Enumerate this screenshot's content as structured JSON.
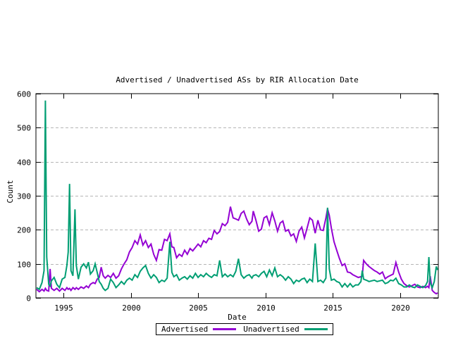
{
  "chart_data": {
    "type": "line",
    "title": "Advertised / Unadvertised ASs by RIR Allocation Date",
    "xlabel": "Date",
    "ylabel": "Count",
    "xlim": [
      1992.95,
      2022.85
    ],
    "ylim": [
      0,
      600
    ],
    "xticks": [
      1995,
      2000,
      2005,
      2010,
      2015,
      2020
    ],
    "yticks": [
      0,
      100,
      200,
      300,
      400,
      500,
      600
    ],
    "grid": "horizontal-dashed",
    "grid_color": "#b5b5b5",
    "legend_position": "bottom-center-boxed",
    "x": [
      1993.0,
      1993.2,
      1993.4,
      1993.55,
      1993.65,
      1993.75,
      1993.9,
      1994.0,
      1994.1,
      1994.3,
      1994.5,
      1994.7,
      1994.9,
      1995.1,
      1995.25,
      1995.35,
      1995.45,
      1995.55,
      1995.7,
      1995.85,
      1995.95,
      1996.1,
      1996.3,
      1996.5,
      1996.7,
      1996.85,
      1997.0,
      1997.2,
      1997.35,
      1997.5,
      1997.65,
      1997.8,
      1997.95,
      1998.1,
      1998.3,
      1998.5,
      1998.7,
      1998.9,
      1999.1,
      1999.3,
      1999.5,
      1999.7,
      1999.9,
      2000.1,
      2000.3,
      2000.5,
      2000.7,
      2000.9,
      2001.1,
      2001.3,
      2001.5,
      2001.7,
      2001.9,
      2002.1,
      2002.3,
      2002.5,
      2002.7,
      2002.9,
      2003.05,
      2003.2,
      2003.4,
      2003.6,
      2003.8,
      2004.0,
      2004.2,
      2004.4,
      2004.6,
      2004.8,
      2005.0,
      2005.2,
      2005.4,
      2005.6,
      2005.8,
      2006.0,
      2006.2,
      2006.4,
      2006.6,
      2006.8,
      2007.0,
      2007.2,
      2007.4,
      2007.6,
      2007.8,
      2008.0,
      2008.2,
      2008.4,
      2008.6,
      2008.8,
      2009.0,
      2009.1,
      2009.3,
      2009.5,
      2009.7,
      2009.9,
      2010.1,
      2010.3,
      2010.5,
      2010.7,
      2010.9,
      2011.1,
      2011.3,
      2011.5,
      2011.7,
      2011.9,
      2012.1,
      2012.3,
      2012.5,
      2012.7,
      2012.9,
      2013.1,
      2013.3,
      2013.5,
      2013.7,
      2013.9,
      2014.1,
      2014.3,
      2014.5,
      2014.62,
      2014.75,
      2014.9,
      2015.1,
      2015.3,
      2015.5,
      2015.7,
      2015.9,
      2016.1,
      2016.3,
      2016.5,
      2016.7,
      2016.9,
      2017.1,
      2017.2,
      2017.3,
      2017.5,
      2017.7,
      2017.9,
      2018.1,
      2018.3,
      2018.5,
      2018.7,
      2018.9,
      2019.1,
      2019.3,
      2019.5,
      2019.7,
      2019.9,
      2020.1,
      2020.3,
      2020.5,
      2020.7,
      2020.9,
      2021.1,
      2021.3,
      2021.5,
      2021.7,
      2021.9,
      2022.05,
      2022.15,
      2022.25,
      2022.4,
      2022.55,
      2022.7,
      2022.8
    ],
    "series": [
      {
        "name": "Advertised",
        "color": "#9400d3",
        "values": [
          25,
          18,
          25,
          20,
          28,
          22,
          20,
          85,
          28,
          22,
          28,
          20,
          28,
          22,
          30,
          25,
          28,
          22,
          30,
          25,
          30,
          25,
          32,
          28,
          35,
          30,
          40,
          45,
          42,
          55,
          60,
          90,
          65,
          58,
          66,
          60,
          72,
          58,
          65,
          85,
          100,
          112,
          135,
          148,
          168,
          158,
          185,
          155,
          168,
          148,
          158,
          128,
          110,
          142,
          140,
          172,
          168,
          188,
          150,
          148,
          118,
          128,
          122,
          140,
          128,
          145,
          138,
          148,
          158,
          150,
          168,
          162,
          175,
          172,
          198,
          188,
          195,
          218,
          212,
          222,
          268,
          235,
          232,
          228,
          248,
          255,
          232,
          215,
          225,
          255,
          228,
          196,
          202,
          235,
          240,
          215,
          250,
          226,
          196,
          220,
          226,
          196,
          200,
          182,
          188,
          166,
          196,
          208,
          176,
          205,
          235,
          228,
          190,
          228,
          200,
          198,
          235,
          262,
          242,
          205,
          165,
          140,
          116,
          95,
          100,
          76,
          74,
          68,
          64,
          60,
          62,
          64,
          110,
          100,
          92,
          86,
          80,
          76,
          70,
          76,
          56,
          62,
          66,
          70,
          104,
          76,
          55,
          42,
          36,
          32,
          36,
          40,
          32,
          30,
          34,
          30,
          34,
          30,
          64,
          22,
          16,
          12,
          15
        ]
      },
      {
        "name": "Unadvertised",
        "color": "#009e73",
        "values": [
          30,
          25,
          45,
          80,
          580,
          120,
          40,
          35,
          50,
          60,
          40,
          30,
          55,
          60,
          95,
          135,
          335,
          80,
          65,
          260,
          95,
          55,
          90,
          100,
          88,
          105,
          70,
          80,
          100,
          75,
          48,
          40,
          28,
          22,
          28,
          55,
          45,
          30,
          38,
          48,
          40,
          52,
          58,
          52,
          68,
          60,
          78,
          88,
          95,
          72,
          58,
          68,
          60,
          45,
          52,
          48,
          58,
          165,
          75,
          62,
          68,
          52,
          58,
          62,
          55,
          65,
          58,
          72,
          60,
          68,
          62,
          72,
          65,
          60,
          68,
          65,
          110,
          62,
          70,
          62,
          68,
          62,
          78,
          115,
          68,
          58,
          65,
          68,
          58,
          65,
          68,
          62,
          72,
          78,
          62,
          82,
          65,
          88,
          62,
          68,
          62,
          52,
          62,
          55,
          42,
          52,
          48,
          55,
          58,
          45,
          55,
          48,
          160,
          48,
          52,
          45,
          58,
          265,
          85,
          52,
          55,
          48,
          45,
          32,
          42,
          32,
          42,
          32,
          38,
          38,
          48,
          80,
          55,
          52,
          48,
          50,
          52,
          48,
          50,
          52,
          42,
          45,
          52,
          50,
          58,
          42,
          38,
          32,
          32,
          38,
          32,
          30,
          38,
          34,
          30,
          36,
          48,
          120,
          44,
          30,
          48,
          92,
          82
        ]
      }
    ]
  }
}
